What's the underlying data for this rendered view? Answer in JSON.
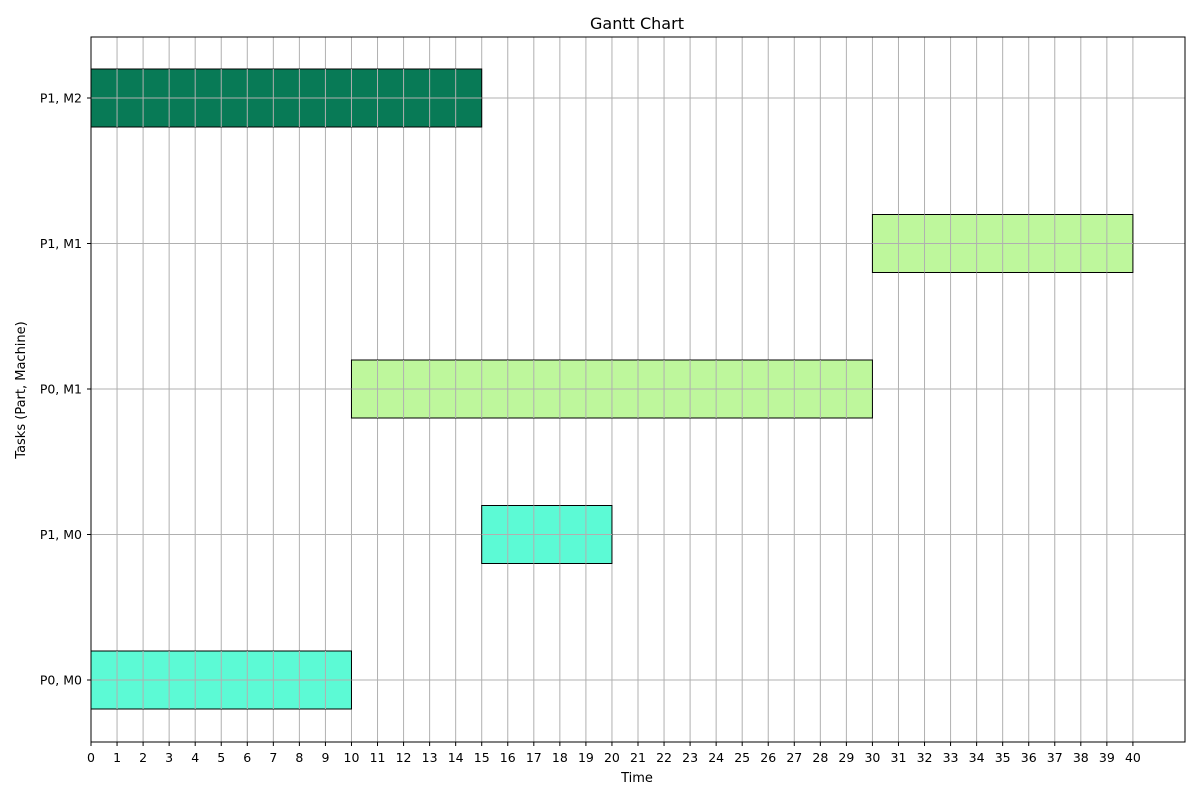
{
  "chart_data": {
    "type": "gantt",
    "title": "Gantt Chart",
    "xlabel": "Time",
    "ylabel": "Tasks (Part, Machine)",
    "xlim": [
      0,
      42
    ],
    "x_ticks": [
      0,
      1,
      2,
      3,
      4,
      5,
      6,
      7,
      8,
      9,
      10,
      11,
      12,
      13,
      14,
      15,
      16,
      17,
      18,
      19,
      20,
      21,
      22,
      23,
      24,
      25,
      26,
      27,
      28,
      29,
      30,
      31,
      32,
      33,
      34,
      35,
      36,
      37,
      38,
      39,
      40
    ],
    "categories": [
      "P0, M0",
      "P1, M0",
      "P0, M1",
      "P1, M1",
      "P1, M2"
    ],
    "grid": true,
    "tasks": [
      {
        "task": "P0, M0",
        "start": 0,
        "end": 10,
        "color": "#5cfad5"
      },
      {
        "task": "P1, M0",
        "start": 15,
        "end": 20,
        "color": "#5cfad5"
      },
      {
        "task": "P0, M1",
        "start": 10,
        "end": 30,
        "color": "#bef79c"
      },
      {
        "task": "P1, M1",
        "start": 30,
        "end": 40,
        "color": "#bef79c"
      },
      {
        "task": "P1, M2",
        "start": 0,
        "end": 15,
        "color": "#087a56"
      }
    ]
  }
}
